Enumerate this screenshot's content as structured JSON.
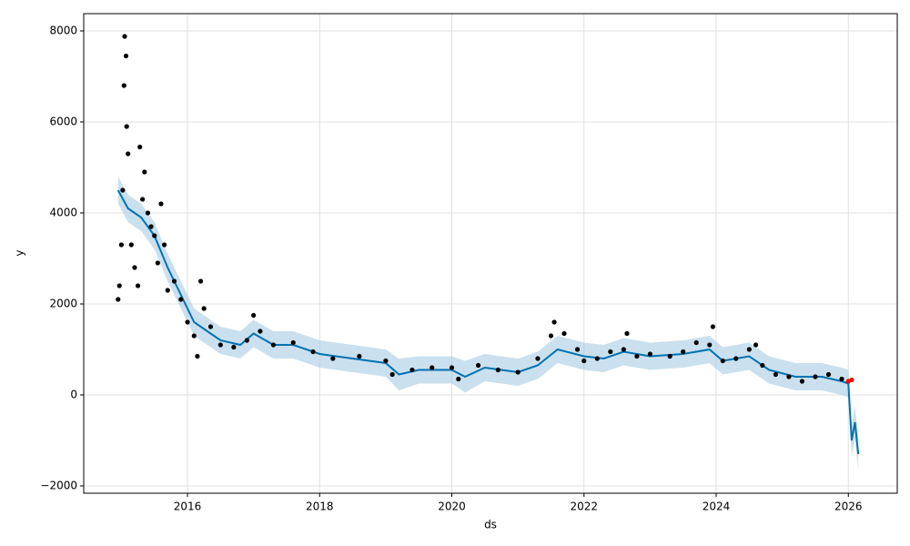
{
  "chart_data": {
    "type": "line",
    "xlabel": "ds",
    "ylabel": "y",
    "xlim": [
      2014.43,
      2026.74
    ],
    "ylim": [
      -2160,
      8380
    ],
    "xticks": [
      2016,
      2018,
      2020,
      2022,
      2024,
      2026
    ],
    "yticks": [
      {
        "value": -2000,
        "label": "−2000"
      },
      0,
      2000,
      4000,
      6000,
      8000
    ],
    "grid": true,
    "series": [
      {
        "type": "band",
        "color": "#a6cbe3",
        "x": [
          2014.95,
          2015.1,
          2015.3,
          2015.5,
          2015.7,
          2015.9,
          2016.1,
          2016.3,
          2016.5,
          2016.8,
          2017.0,
          2017.3,
          2017.6,
          2018.0,
          2018.5,
          2019.0,
          2019.2,
          2019.5,
          2020.0,
          2020.2,
          2020.5,
          2021.0,
          2021.3,
          2021.6,
          2022.0,
          2022.3,
          2022.6,
          2023.0,
          2023.5,
          2023.9,
          2024.1,
          2024.5,
          2024.8,
          2025.2,
          2025.6,
          2025.9,
          2026.0,
          2026.05,
          2026.1,
          2026.15
        ],
        "upper": [
          4800,
          4400,
          4200,
          3800,
          3100,
          2500,
          1900,
          1700,
          1500,
          1400,
          1650,
          1400,
          1400,
          1200,
          1100,
          1000,
          800,
          850,
          850,
          750,
          900,
          800,
          950,
          1300,
          1150,
          1100,
          1250,
          1150,
          1200,
          1300,
          1050,
          1150,
          850,
          700,
          700,
          600,
          550,
          -650,
          -250,
          -950
        ],
        "lower": [
          4200,
          3800,
          3600,
          3200,
          2500,
          1900,
          1300,
          1100,
          900,
          800,
          1050,
          800,
          800,
          600,
          500,
          400,
          100,
          250,
          250,
          50,
          300,
          200,
          350,
          700,
          550,
          500,
          650,
          550,
          600,
          700,
          450,
          550,
          250,
          100,
          100,
          0,
          -50,
          -1350,
          -950,
          -1650
        ]
      },
      {
        "type": "line",
        "color": "#0072b2",
        "x": [
          2014.95,
          2015.1,
          2015.3,
          2015.5,
          2015.7,
          2015.9,
          2016.1,
          2016.3,
          2016.5,
          2016.8,
          2017.0,
          2017.3,
          2017.6,
          2018.0,
          2018.5,
          2019.0,
          2019.2,
          2019.5,
          2020.0,
          2020.2,
          2020.5,
          2021.0,
          2021.3,
          2021.6,
          2022.0,
          2022.3,
          2022.6,
          2023.0,
          2023.5,
          2023.9,
          2024.1,
          2024.5,
          2024.8,
          2025.2,
          2025.6,
          2025.9,
          2026.0,
          2026.05,
          2026.1,
          2026.15
        ],
        "values": [
          4500,
          4100,
          3900,
          3500,
          2800,
          2200,
          1600,
          1400,
          1200,
          1100,
          1350,
          1100,
          1100,
          900,
          800,
          700,
          450,
          550,
          550,
          400,
          600,
          500,
          650,
          1000,
          850,
          800,
          950,
          850,
          900,
          1000,
          750,
          850,
          550,
          400,
          400,
          300,
          250,
          -1000,
          -600,
          -1300
        ]
      },
      {
        "type": "scatter",
        "color": "#000000",
        "x": [
          2014.95,
          2014.97,
          2015.0,
          2015.02,
          2015.04,
          2015.05,
          2015.07,
          2015.08,
          2015.1,
          2015.15,
          2015.2,
          2015.25,
          2015.28,
          2015.32,
          2015.35,
          2015.4,
          2015.45,
          2015.5,
          2015.55,
          2015.6,
          2015.65,
          2015.7,
          2015.8,
          2015.9,
          2016.0,
          2016.1,
          2016.15,
          2016.2,
          2016.25,
          2016.35,
          2016.5,
          2016.7,
          2016.9,
          2017.0,
          2017.1,
          2017.3,
          2017.6,
          2017.9,
          2018.2,
          2018.6,
          2019.0,
          2019.1,
          2019.4,
          2019.7,
          2020.0,
          2020.1,
          2020.4,
          2020.7,
          2021.0,
          2021.3,
          2021.5,
          2021.55,
          2021.7,
          2021.9,
          2022.0,
          2022.2,
          2022.4,
          2022.6,
          2022.65,
          2022.8,
          2023.0,
          2023.3,
          2023.5,
          2023.7,
          2023.9,
          2023.95,
          2024.1,
          2024.3,
          2024.5,
          2024.6,
          2024.7,
          2024.9,
          2025.1,
          2025.3,
          2025.5,
          2025.7,
          2025.9
        ],
        "values": [
          2100,
          2400,
          3300,
          4500,
          6800,
          7880,
          7450,
          5900,
          5300,
          3300,
          2800,
          2400,
          5450,
          4300,
          4900,
          4000,
          3700,
          3500,
          2900,
          4200,
          3300,
          2300,
          2500,
          2100,
          1600,
          1300,
          850,
          2500,
          1900,
          1500,
          1100,
          1050,
          1200,
          1750,
          1400,
          1100,
          1150,
          950,
          800,
          850,
          750,
          450,
          550,
          600,
          600,
          350,
          650,
          550,
          500,
          800,
          1300,
          1600,
          1350,
          1000,
          750,
          800,
          950,
          1000,
          1350,
          850,
          900,
          850,
          950,
          1150,
          1100,
          1500,
          750,
          800,
          1000,
          1100,
          650,
          450,
          400,
          300,
          400,
          450,
          350
        ]
      },
      {
        "type": "scatter",
        "color": "#ff0000",
        "x": [
          2026.0,
          2026.05
        ],
        "values": [
          300,
          330
        ]
      }
    ]
  }
}
